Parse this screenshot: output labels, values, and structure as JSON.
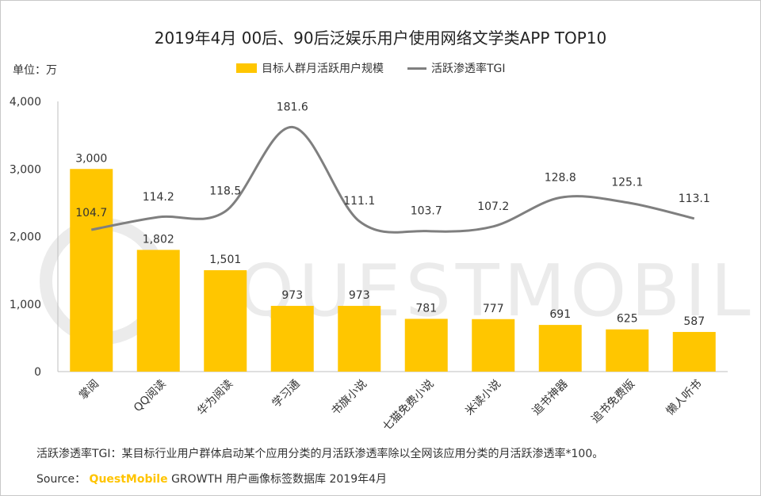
{
  "title": "2019年4月 00后、90后泛娱乐用户使用网络文学类APP TOP10",
  "unit_label": "单位：万",
  "colors": {
    "bar": "#ffc600",
    "line": "#7f7f7f",
    "watermark": "#ebebeb"
  },
  "watermark": "QUESTMOBILE",
  "chart_data": {
    "type": "bar",
    "categories": [
      "掌阅",
      "QQ阅读",
      "华为阅读",
      "学习通",
      "书旗小说",
      "七猫免费小说",
      "米读小说",
      "追书神器",
      "追书免费版",
      "懒人听书"
    ],
    "series": [
      {
        "name": "目标人群月活跃用户规模",
        "type": "bar",
        "values": [
          3000,
          1802,
          1501,
          973,
          973,
          781,
          777,
          691,
          625,
          587
        ],
        "labels": [
          "3,000",
          "1,802",
          "1,501",
          "973",
          "973",
          "781",
          "777",
          "691",
          "625",
          "587"
        ]
      },
      {
        "name": "活跃渗透率TGI",
        "type": "line",
        "values": [
          104.7,
          114.2,
          118.5,
          181.6,
          111.1,
          103.7,
          107.2,
          128.8,
          125.1,
          113.1
        ],
        "labels": [
          "104.7",
          "114.2",
          "118.5",
          "181.6",
          "111.1",
          "103.7",
          "107.2",
          "128.8",
          "125.1",
          "113.1"
        ]
      }
    ],
    "ylim": [
      0,
      4000
    ],
    "yticks": [
      0,
      1000,
      2000,
      3000,
      4000
    ],
    "ytick_labels": [
      "0",
      "1,000",
      "2,000",
      "3,000",
      "4,000"
    ],
    "legend_position": "top"
  },
  "note": "活跃渗透率TGI：某目标行业用户群体启动某个应用分类的月活跃渗透率除以全网该应用分类的月活跃渗透率*100。",
  "source": {
    "prefix": "Source：",
    "brand": "QuestMobile",
    "text": "GROWTH 用户画像标签数据库 2019年4月"
  }
}
